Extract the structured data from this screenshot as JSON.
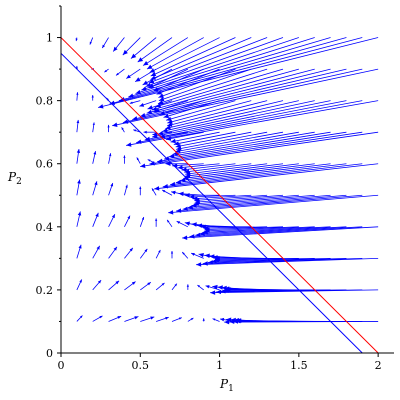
{
  "chart_data": {
    "type": "quiver",
    "title": "",
    "xlabel": "P",
    "xlabel_sub": "1",
    "ylabel": "P",
    "ylabel_sub": "2",
    "xlim": [
      0,
      2.1
    ],
    "ylim": [
      0,
      1.1
    ],
    "x_ticks": [
      {
        "value": 0,
        "label": "0"
      },
      {
        "value": 0.5,
        "label": "0.5"
      },
      {
        "value": 1,
        "label": "1"
      },
      {
        "value": 1.5,
        "label": "1.5"
      },
      {
        "value": 2,
        "label": "2"
      }
    ],
    "y_ticks": [
      {
        "value": 0,
        "label": "0"
      },
      {
        "value": 0.2,
        "label": "0.2"
      },
      {
        "value": 0.4,
        "label": "0.4"
      },
      {
        "value": 0.6,
        "label": "0.6"
      },
      {
        "value": 0.8,
        "label": "0.8"
      },
      {
        "value": 1,
        "label": "1"
      }
    ],
    "field": {
      "description": "direction field dP1/dt = P1(1 - P1 - P2), dP2/dt = P2(1 - 0.5*P1 - P2)",
      "x_start": 0.1,
      "x_step": 0.1,
      "x_count": 20,
      "y_start": 0.1,
      "y_step": 0.1,
      "y_count": 10,
      "color": "#0000ff"
    },
    "lines": [
      {
        "from": [
          0,
          1
        ],
        "to": [
          2,
          0
        ],
        "color": "#ff0000"
      },
      {
        "from": [
          0,
          0.95
        ],
        "to": [
          1.9,
          0
        ],
        "color": "#0000ff"
      }
    ]
  }
}
